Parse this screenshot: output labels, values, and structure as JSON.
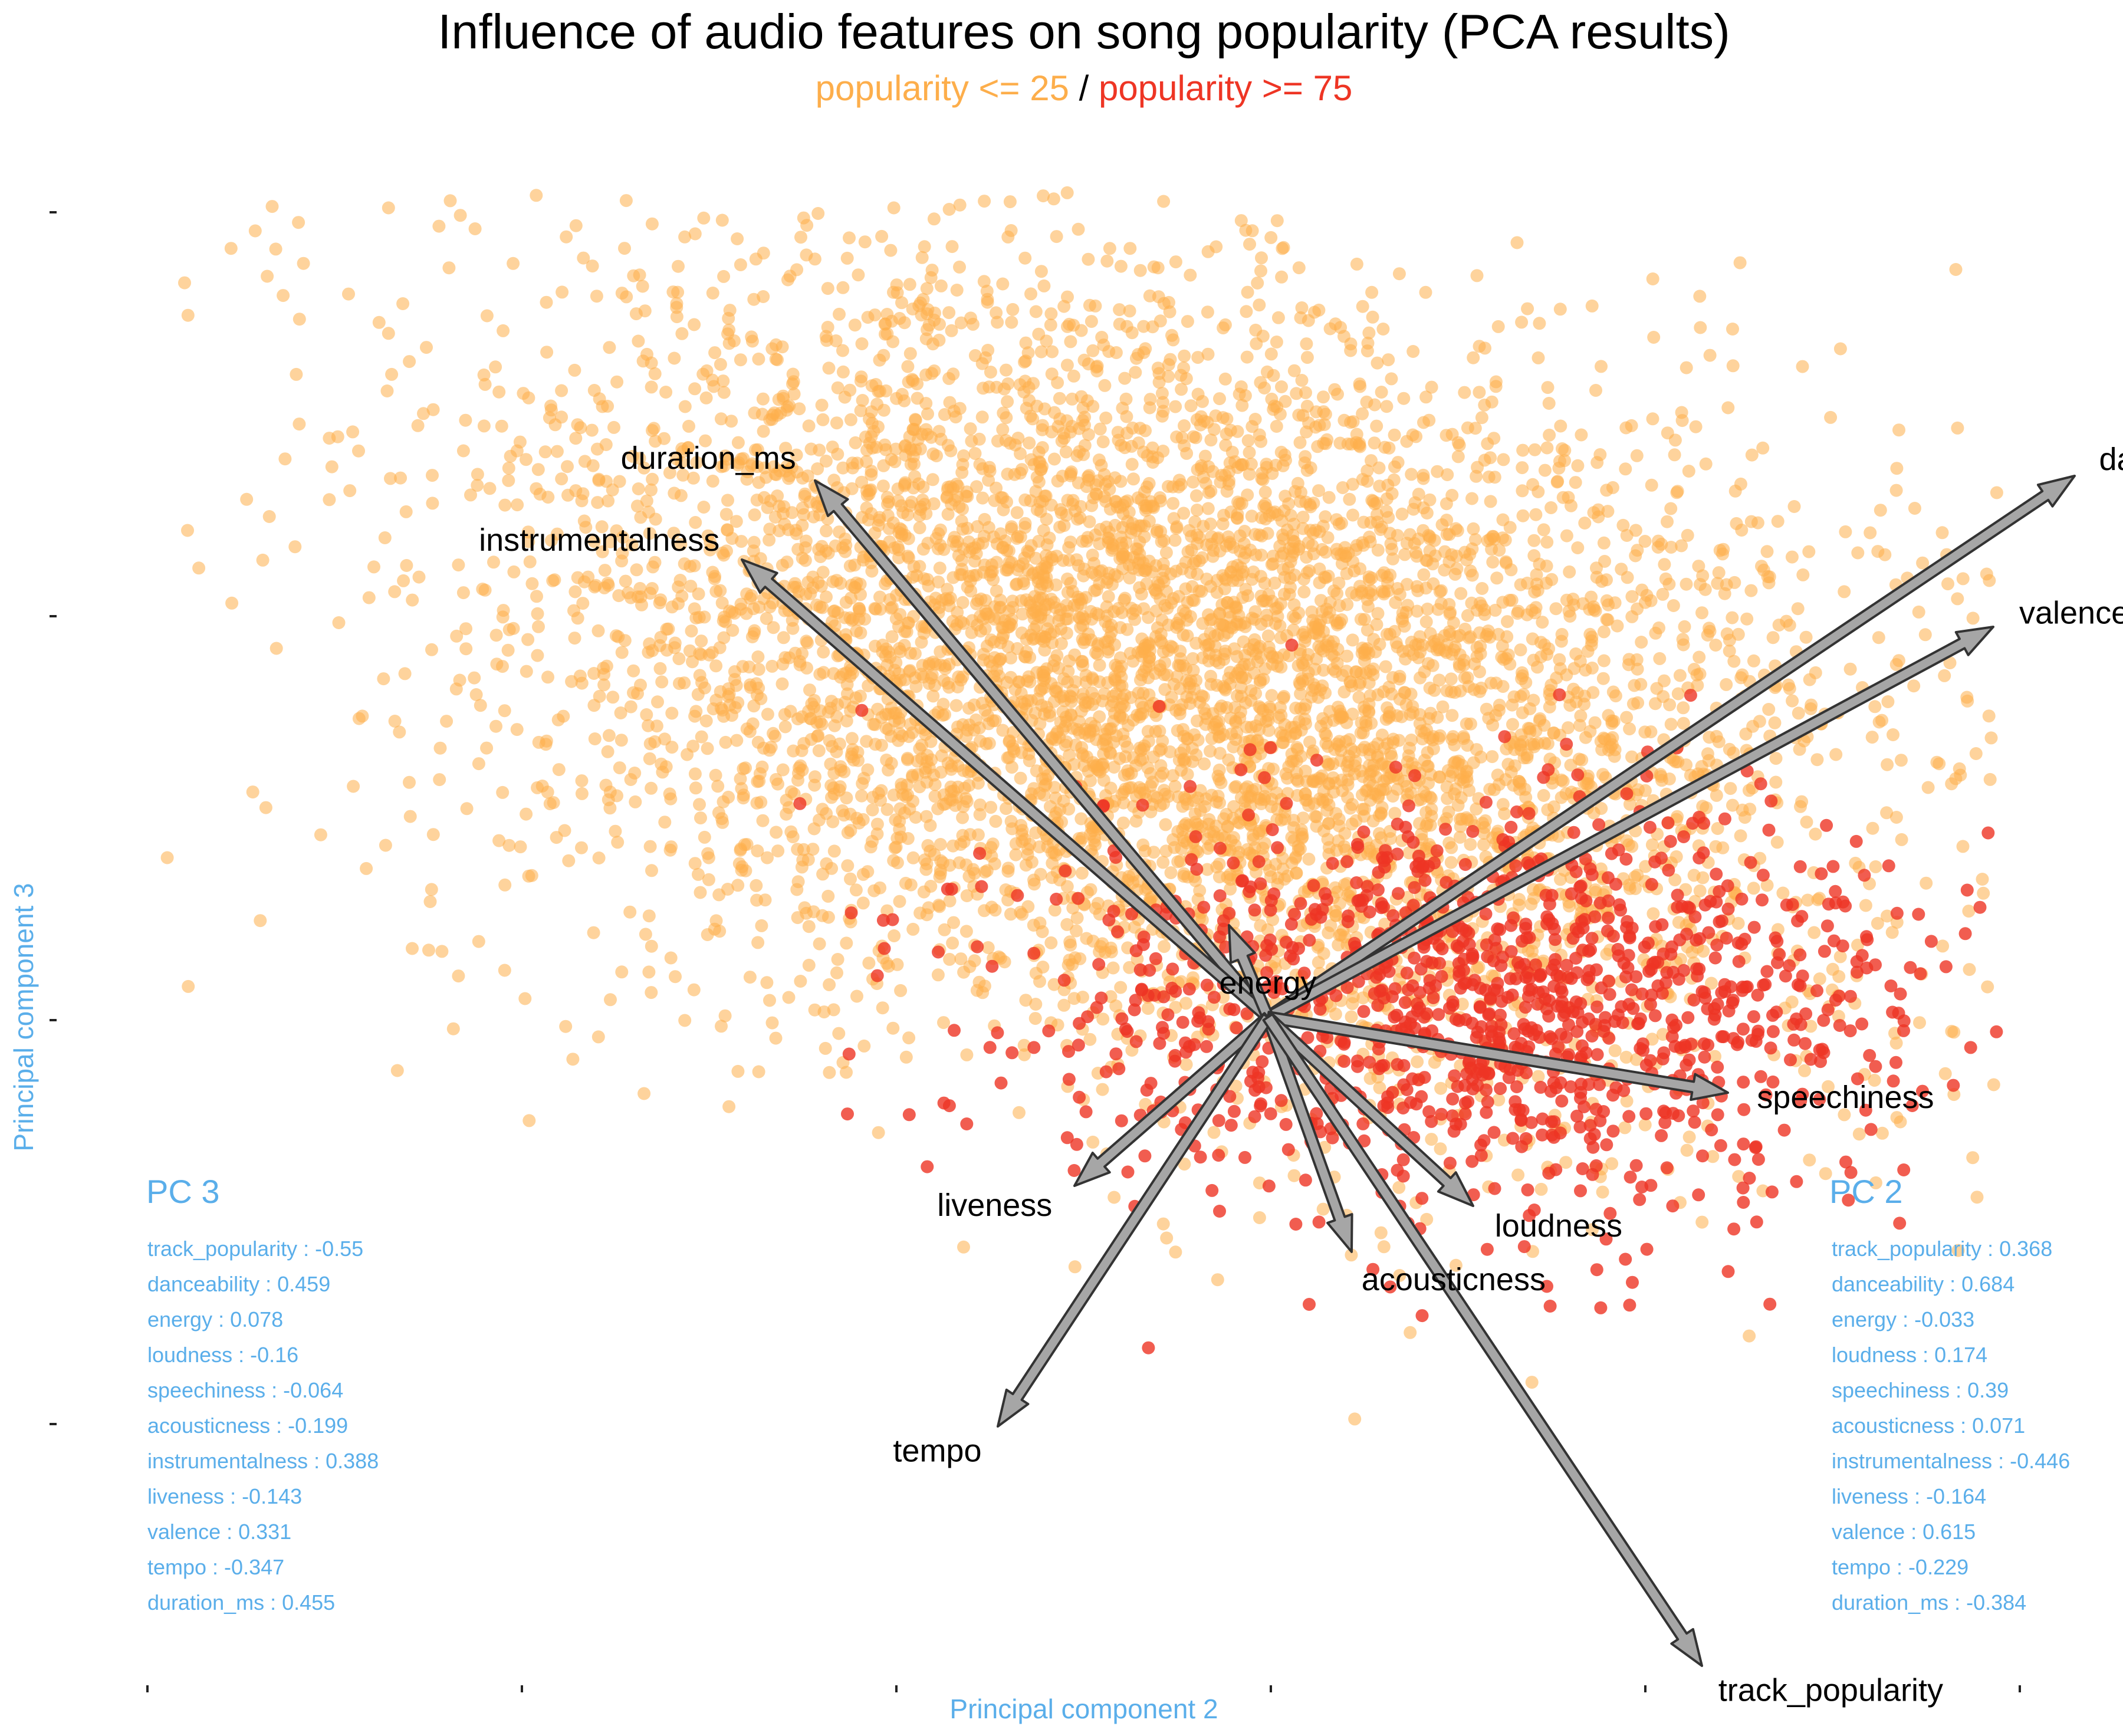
{
  "title": "Influence of audio features on song popularity (PCA results)",
  "subtitle": {
    "part_low": "popularity <= 25",
    "separator": " / ",
    "part_high": "popularity >= 75"
  },
  "colors": {
    "low_popularity": "#FDAE4B",
    "high_popularity": "#EE3524",
    "accent_text": "#5AAEEA",
    "arrow_fill": "#A6A6A6",
    "arrow_stroke": "#333333"
  },
  "chart_data": {
    "type": "scatter",
    "title": "Influence of audio features on song popularity (PCA results)",
    "subtitle": "popularity <= 25 / popularity >= 75",
    "xlabel": "Principal component 2",
    "ylabel": "Principal component 3",
    "x_tick_labels": [],
    "y_tick_labels": [],
    "grid": false,
    "series": [
      {
        "name": "popularity <= 25",
        "color": "#FDAE4B",
        "approx_point_count": 6000,
        "cluster_center": [
          3.0,
          0.4
        ],
        "cluster_spread": [
          2.4,
          1.0
        ]
      },
      {
        "name": "popularity >= 75",
        "color": "#EE3524",
        "approx_point_count": 1200,
        "cluster_center": [
          4.7,
          -0.9
        ],
        "cluster_spread": [
          1.6,
          0.55
        ]
      }
    ],
    "loading_vectors": [
      {
        "name": "danceability",
        "pc2": 0.684,
        "pc3": 0.459
      },
      {
        "name": "valence",
        "pc2": 0.615,
        "pc3": 0.331
      },
      {
        "name": "duration_ms",
        "pc2": -0.384,
        "pc3": 0.455
      },
      {
        "name": "instrumentalness",
        "pc2": -0.446,
        "pc3": 0.388
      },
      {
        "name": "energy",
        "pc2": -0.033,
        "pc3": 0.078
      },
      {
        "name": "speechiness",
        "pc2": 0.39,
        "pc3": -0.064
      },
      {
        "name": "loudness",
        "pc2": 0.174,
        "pc3": -0.16
      },
      {
        "name": "acousticness",
        "pc2": 0.071,
        "pc3": -0.199
      },
      {
        "name": "liveness",
        "pc2": -0.164,
        "pc3": -0.143
      },
      {
        "name": "tempo",
        "pc2": -0.229,
        "pc3": -0.347
      },
      {
        "name": "track_popularity",
        "pc2": 0.368,
        "pc3": -0.55
      }
    ]
  },
  "pc3_panel": {
    "heading": "PC 3",
    "lines": [
      "track_popularity : -0.55",
      "danceability : 0.459",
      "energy : 0.078",
      "loudness : -0.16",
      "speechiness : -0.064",
      "acousticness : -0.199",
      "instrumentalness : 0.388",
      "liveness : -0.143",
      "valence : 0.331",
      "tempo : -0.347",
      "duration_ms : 0.455"
    ]
  },
  "pc2_panel": {
    "heading": "PC 2",
    "lines": [
      "track_popularity : 0.368",
      "danceability : 0.684",
      "energy : -0.033",
      "loudness : 0.174",
      "speechiness : 0.39",
      "acousticness : 0.071",
      "instrumentalness : -0.446",
      "liveness : -0.164",
      "valence : 0.615",
      "tempo : -0.229",
      "duration_ms : -0.384"
    ]
  }
}
